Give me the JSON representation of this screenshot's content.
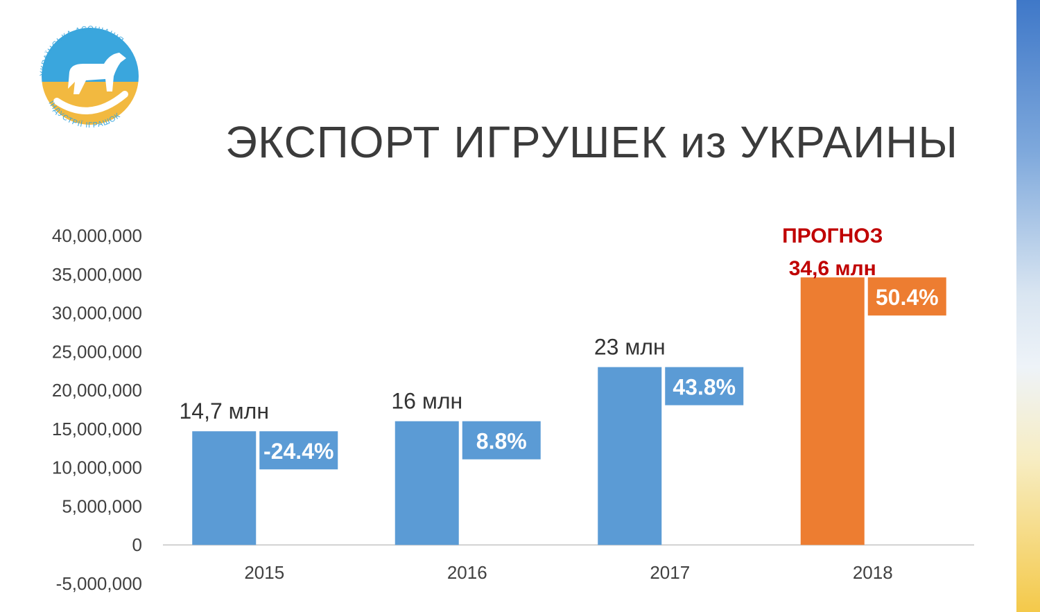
{
  "title": "ЭКСПОРТ ИГРУШЕК из УКРАИНЫ",
  "logo": {
    "text_top": "УКРАЇНСЬКА АСОЦІАЦІЯ",
    "text_bottom": "ІНДУСТРІЇ ІГРАШОК",
    "icon": "rocking-horse-icon"
  },
  "colors": {
    "bar_actual": "#5b9bd5",
    "bar_forecast": "#ed7d31",
    "forecast_text": "#c00000",
    "ua_blue": "#3f78c8",
    "ua_yellow": "#f4c94a"
  },
  "chart_data": {
    "type": "bar",
    "categories": [
      "2015",
      "2016",
      "2017",
      "2018"
    ],
    "values": [
      14700000,
      16000000,
      23000000,
      34600000
    ],
    "value_labels": [
      "14,7 млн",
      "16 млн",
      "23 млн",
      "34,6 млн"
    ],
    "change_labels": [
      "-24.4%",
      "8.8%",
      "43.8%",
      "50.4%"
    ],
    "forecast_label": "ПРОГНОЗ",
    "forecast_index": 3,
    "ylim": [
      -5000000,
      40000000
    ],
    "yticks": [
      -5000000,
      0,
      5000000,
      10000000,
      15000000,
      20000000,
      25000000,
      30000000,
      35000000,
      40000000
    ],
    "ytick_labels": [
      "-5,000,000",
      "0",
      "5,000,000",
      "10,000,000",
      "15,000,000",
      "20,000,000",
      "25,000,000",
      "30,000,000",
      "35,000,000",
      "40,000,000"
    ],
    "grid": false,
    "legend": "none",
    "xlabel": "",
    "ylabel": ""
  }
}
